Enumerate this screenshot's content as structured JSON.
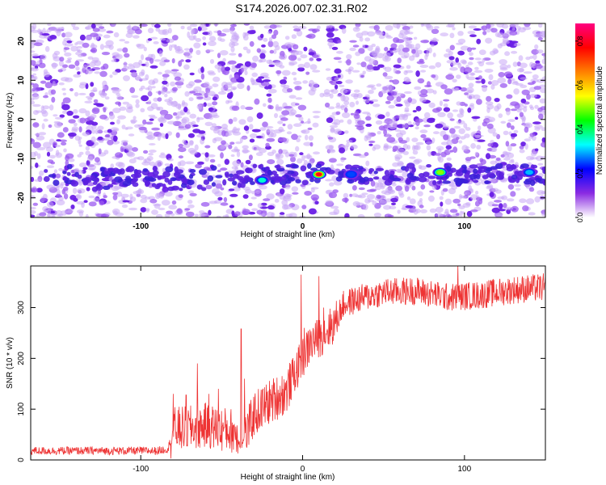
{
  "figure": {
    "title": "S174.2026.007.02.31.R02"
  },
  "chart_data": [
    {
      "type": "heatmap",
      "title": "S174.2026.007.02.31.R02",
      "xlabel": "Height of straight line (km)",
      "ylabel": "Frequency (Hz)",
      "xlim": [
        -168,
        150
      ],
      "ylim": [
        -25,
        24.5
      ],
      "xticks": [
        -100,
        0,
        100
      ],
      "yticks": [
        -20,
        -10,
        0,
        10,
        20
      ],
      "colorbar": {
        "label": "Normalized spectral amplitude",
        "range": [
          0.0,
          0.88
        ],
        "ticks": [
          0.0,
          0.2,
          0.4,
          0.6,
          0.8
        ],
        "colors": [
          "#ffffff",
          "#8a2be2",
          "#0000ff",
          "#00ffff",
          "#00ff00",
          "#ffff00",
          "#ff8000",
          "#ff0000",
          "#ff0080"
        ]
      },
      "features": {
        "signal_band_frequency_hz": -14,
        "signal_band_x_range_km": [
          -160,
          150
        ],
        "peaks": [
          {
            "x": -25,
            "y": -15.5,
            "amplitude": 0.35
          },
          {
            "x": 10,
            "y": -14,
            "amplitude": 0.8
          },
          {
            "x": 30,
            "y": -14,
            "amplitude": 0.25
          },
          {
            "x": 85,
            "y": -13.5,
            "amplitude": 0.5
          },
          {
            "x": 140,
            "y": -13.5,
            "amplitude": 0.3
          }
        ]
      }
    },
    {
      "type": "line",
      "xlabel": "Height of straight line (km)",
      "ylabel": "SNR (10 * v/v)",
      "xlim": [
        -168,
        150
      ],
      "ylim": [
        0,
        382
      ],
      "xticks": [
        -100,
        0,
        100
      ],
      "yticks": [
        0,
        100,
        200,
        300
      ],
      "series_color": "#ee3333",
      "trend": {
        "x": [
          -168,
          -130,
          -90,
          -83,
          -80,
          -70,
          -60,
          -50,
          -42,
          -38,
          -30,
          -20,
          -10,
          -5,
          0,
          5,
          10,
          15,
          20,
          25,
          30,
          40,
          50,
          70,
          90,
          110,
          130,
          150
        ],
        "y": [
          18,
          18,
          18,
          22,
          60,
          62,
          68,
          60,
          58,
          25,
          90,
          115,
          135,
          170,
          200,
          230,
          240,
          255,
          270,
          305,
          312,
          322,
          330,
          333,
          320,
          325,
          335,
          340
        ]
      },
      "spikes": [
        {
          "x": -80,
          "y": 130
        },
        {
          "x": -72,
          "y": 128
        },
        {
          "x": -65,
          "y": 190
        },
        {
          "x": -58,
          "y": 130
        },
        {
          "x": -52,
          "y": 140
        },
        {
          "x": -44,
          "y": 48
        },
        {
          "x": -36,
          "y": 160
        },
        {
          "x": -38,
          "y": 258
        },
        {
          "x": -1,
          "y": 365
        },
        {
          "x": 1,
          "y": 260
        },
        {
          "x": 10,
          "y": 362
        },
        {
          "x": 13,
          "y": 300
        },
        {
          "x": 96,
          "y": 382
        }
      ]
    }
  ]
}
